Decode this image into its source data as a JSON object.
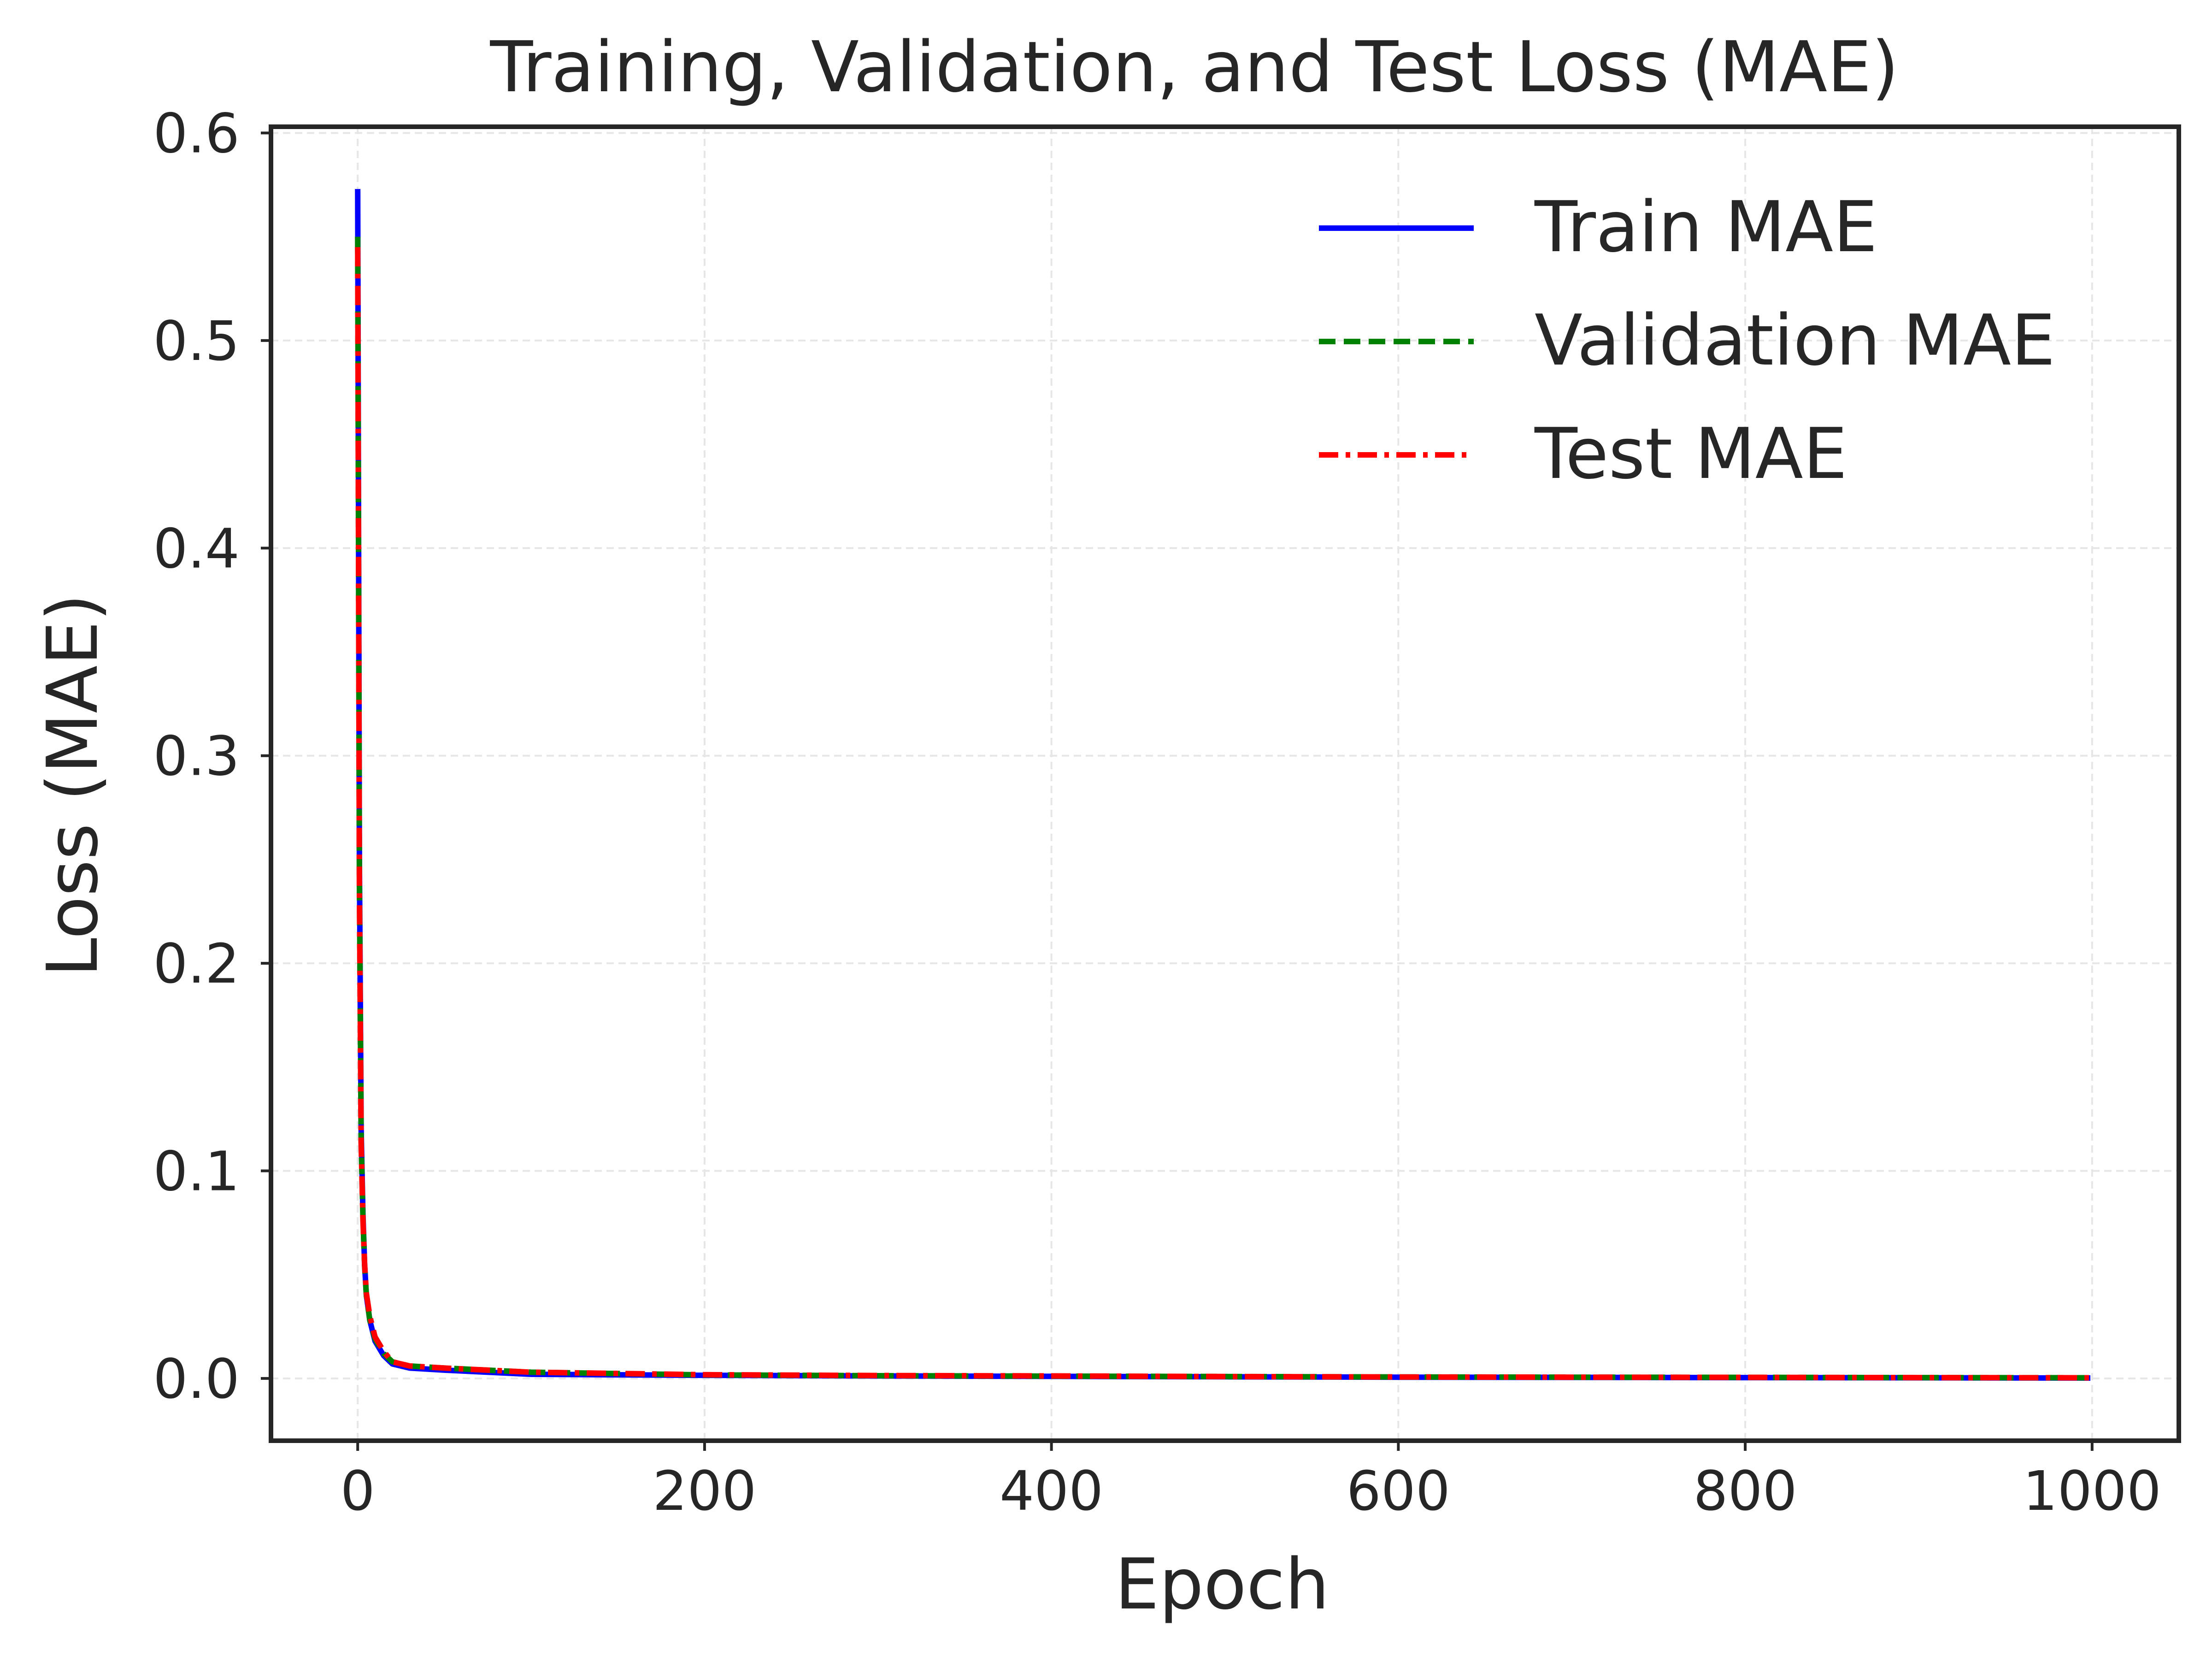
{
  "chart_data": {
    "type": "line",
    "title": "Training, Validation, and Test Loss (MAE)",
    "xlabel": "Epoch",
    "ylabel": "Loss (MAE)",
    "xlim": [
      -50,
      1050
    ],
    "ylim": [
      -0.03,
      0.603
    ],
    "xticks": [
      0,
      200,
      400,
      600,
      800,
      1000
    ],
    "yticks": [
      0.0,
      0.1,
      0.2,
      0.3,
      0.4,
      0.5,
      0.6
    ],
    "xtick_labels": [
      "0",
      "200",
      "400",
      "600",
      "800",
      "1000"
    ],
    "ytick_labels": [
      "0.0",
      "0.1",
      "0.2",
      "0.3",
      "0.4",
      "0.5",
      "0.6"
    ],
    "grid": true,
    "legend_position": "top-right",
    "series": [
      {
        "name": "Train MAE",
        "color": "#0000ff",
        "style": "solid",
        "x": [
          0,
          1,
          2,
          3,
          4,
          5,
          7,
          10,
          15,
          20,
          30,
          50,
          100,
          200,
          300,
          400,
          500,
          600,
          700,
          800,
          900,
          999
        ],
        "y": [
          0.573,
          0.25,
          0.12,
          0.08,
          0.055,
          0.04,
          0.028,
          0.018,
          0.011,
          0.007,
          0.005,
          0.004,
          0.002,
          0.0015,
          0.0012,
          0.001,
          0.0008,
          0.0006,
          0.0005,
          0.0004,
          0.0003,
          0.0002
        ]
      },
      {
        "name": "Validation MAE",
        "color": "#008000",
        "style": "dashed",
        "x": [
          0,
          1,
          2,
          3,
          4,
          5,
          7,
          10,
          15,
          20,
          30,
          50,
          100,
          200,
          300,
          400,
          500,
          600,
          700,
          800,
          900,
          999
        ],
        "y": [
          0.55,
          0.24,
          0.115,
          0.078,
          0.054,
          0.04,
          0.028,
          0.019,
          0.012,
          0.008,
          0.006,
          0.005,
          0.003,
          0.0017,
          0.0013,
          0.0011,
          0.0009,
          0.0007,
          0.0006,
          0.0005,
          0.0004,
          0.0003
        ]
      },
      {
        "name": "Test MAE",
        "color": "#ff0000",
        "style": "dashdot",
        "x": [
          0,
          1,
          2,
          3,
          4,
          5,
          7,
          10,
          15,
          20,
          30,
          50,
          100,
          200,
          300,
          400,
          500,
          600,
          700,
          800,
          900,
          999
        ],
        "y": [
          0.545,
          0.235,
          0.113,
          0.077,
          0.055,
          0.041,
          0.03,
          0.02,
          0.013,
          0.008,
          0.006,
          0.005,
          0.003,
          0.0018,
          0.0014,
          0.0012,
          0.0009,
          0.0007,
          0.0006,
          0.0005,
          0.0004,
          0.0003
        ]
      }
    ]
  }
}
